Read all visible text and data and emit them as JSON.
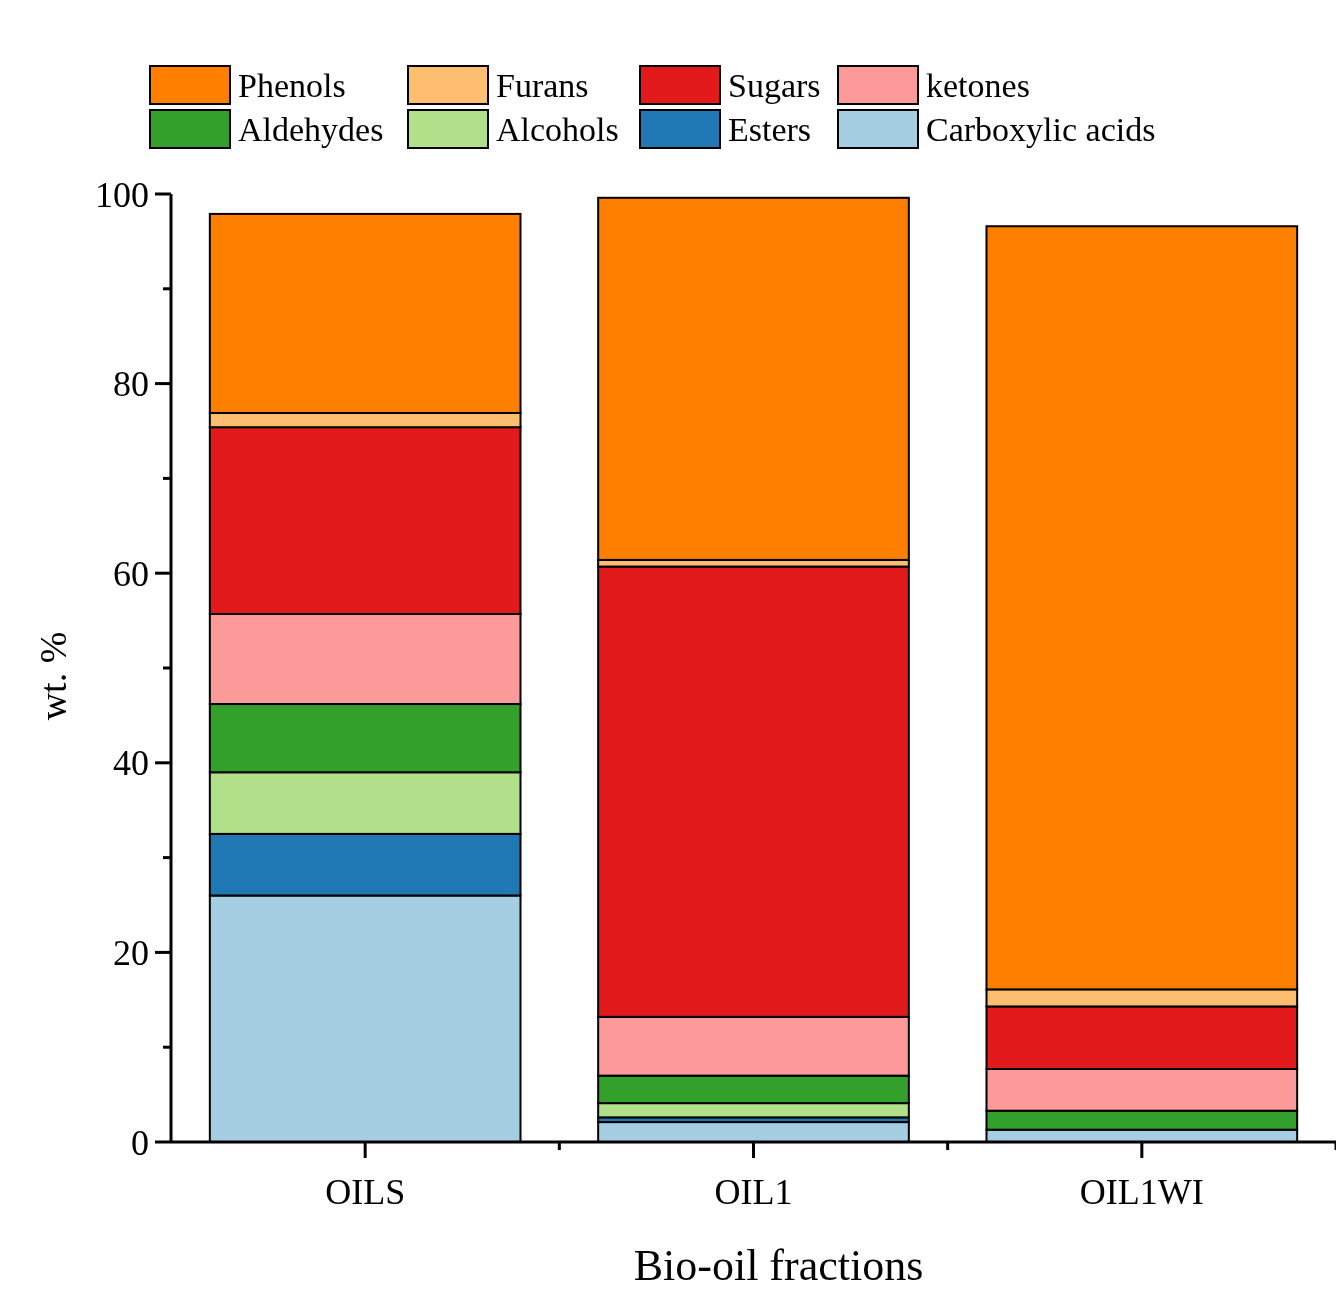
{
  "chart_data": {
    "type": "bar",
    "stacked": true,
    "xlabel": "Bio-oil fractions",
    "ylabel": "wt. %",
    "categories": [
      "OILS",
      "OIL1",
      "OIL1WI"
    ],
    "ylim": [
      0,
      100
    ],
    "yticks": [
      0,
      {
        "value": 10,
        "label": null
      },
      20,
      {
        "value": 30,
        "label": null
      },
      40,
      {
        "value": 50,
        "label": null
      },
      60,
      {
        "value": 70,
        "label": null
      },
      80,
      {
        "value": 90,
        "label": null
      },
      100
    ],
    "legend": "top",
    "grid": false,
    "series": [
      {
        "name": "Carboxylic acids",
        "color": "#a6cee3",
        "values": [
          26.0,
          2.1,
          1.3
        ]
      },
      {
        "name": "Esters",
        "color": "#1f78b4",
        "values": [
          6.5,
          0.5,
          0
        ]
      },
      {
        "name": "Alcohols",
        "color": "#b2df8a",
        "values": [
          6.5,
          1.5,
          0
        ]
      },
      {
        "name": "Aldehydes",
        "color": "#33a02c",
        "values": [
          7.2,
          2.9,
          2.0
        ]
      },
      {
        "name": "ketones",
        "color": "#fb9a99",
        "values": [
          9.5,
          6.2,
          4.4
        ]
      },
      {
        "name": "Sugars",
        "color": "#e31a1c",
        "values": [
          19.7,
          47.5,
          6.6
        ]
      },
      {
        "name": "Furans",
        "color": "#fdbf6f",
        "values": [
          1.5,
          0.7,
          1.8
        ]
      },
      {
        "name": "Phenols",
        "color": "#ff7f00",
        "values": [
          21.0,
          38.2,
          80.5
        ]
      }
    ]
  }
}
